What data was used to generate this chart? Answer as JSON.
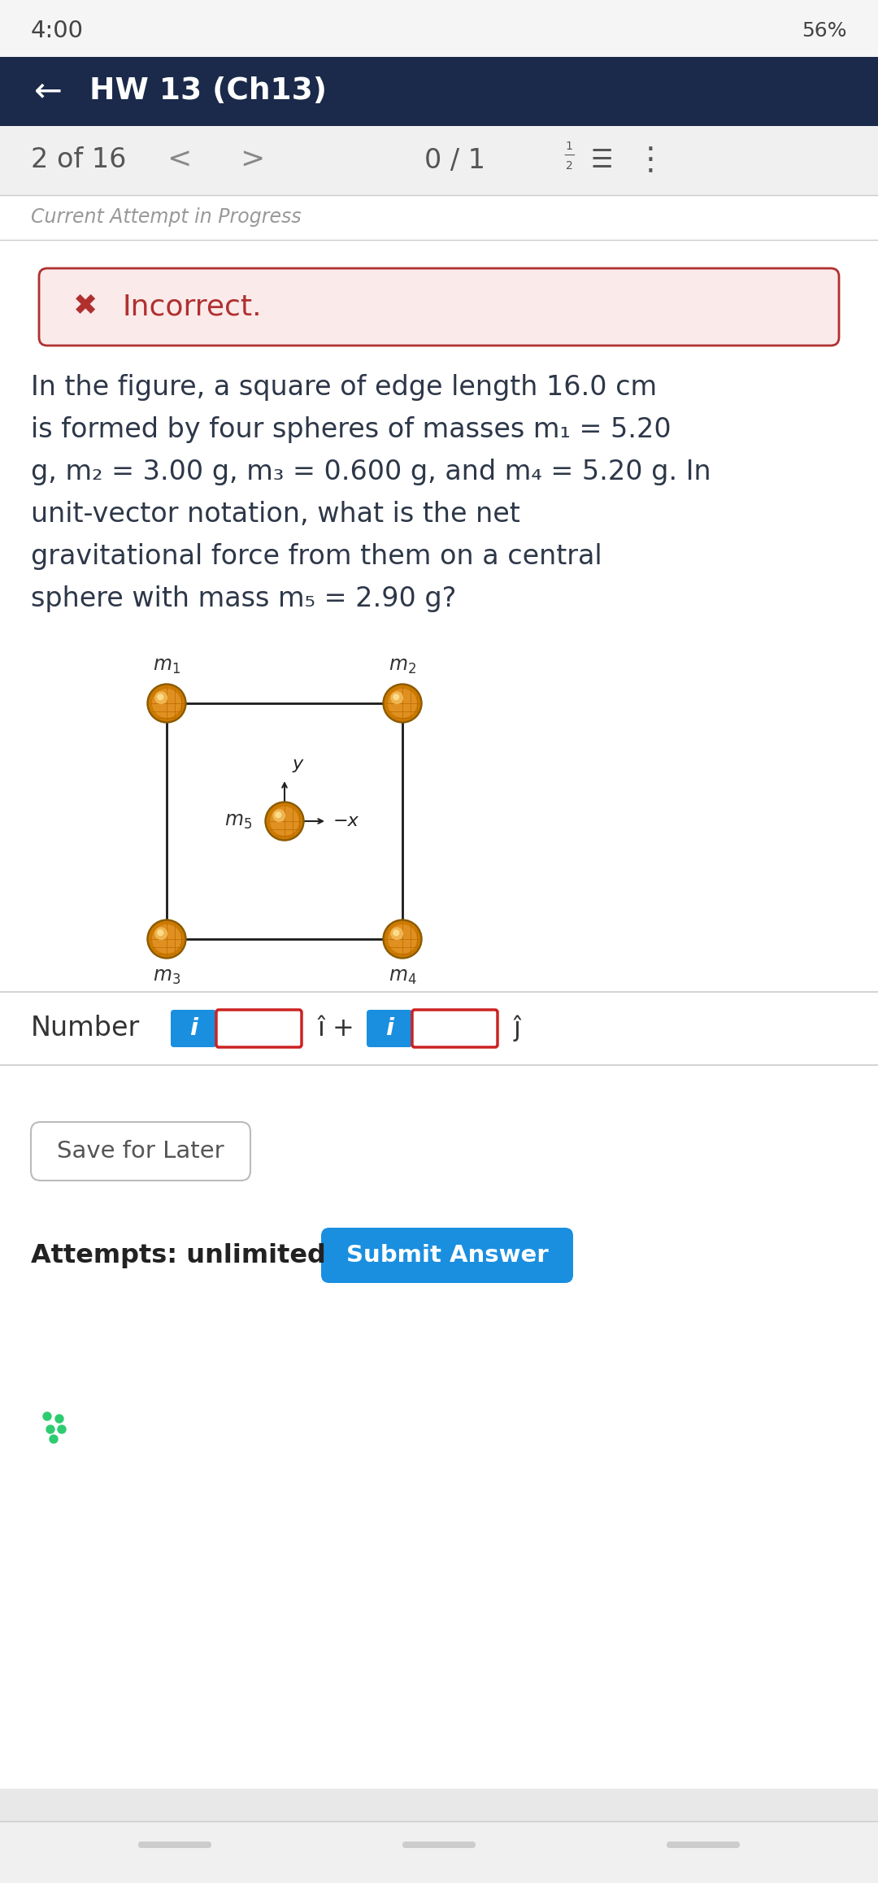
{
  "status_bar_time": "4:00",
  "header_bg": "#1b2a4a",
  "header_text": "HW 13 (Ch13)",
  "nav_text": "2 of 16",
  "nav_score": "0 / 1",
  "incorrect_bg": "#fbeaea",
  "incorrect_border": "#b03030",
  "incorrect_text": "Incorrect.",
  "incorrect_text_color": "#b03030",
  "question_text_color": "#2d3748",
  "question_lines": [
    "In the figure, a square of edge length 16.0 cm",
    "is formed by four spheres of masses m₁ = 5.20",
    "g, m₂ = 3.00 g, m₃ = 0.600 g, and m₄ = 5.20 g. In",
    "unit-vector notation, what is the net",
    "gravitational force from them on a central",
    "sphere with mass m₅ = 2.90 g?"
  ],
  "input_border": "#cc2222",
  "blue_btn_bg": "#1a8fe0",
  "number_label": "Number",
  "i_hat": "î +",
  "j_hat": "ĵ",
  "save_btn_text": "Save for Later",
  "submit_btn_text": "Submit Answer",
  "attempts_text": "Attempts: unlimited",
  "page_bg": "#e8e8e8",
  "content_bg": "#ffffff"
}
